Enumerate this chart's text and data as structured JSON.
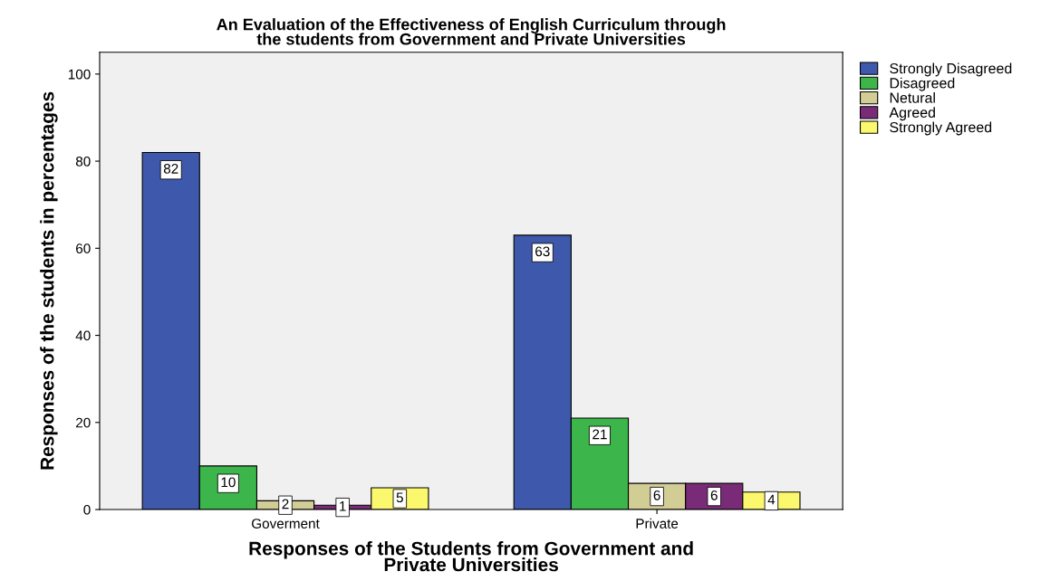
{
  "chart_data": {
    "type": "bar",
    "title": "An Evaluation of the Effectiveness of English Curriculum through\nthe students from Government and Private Universities",
    "xlabel": "Responses of the Students from Government and\nPrivate Universities",
    "ylabel": "Responses of the students in percentages",
    "categories": [
      "Goverment",
      "Private"
    ],
    "series": [
      {
        "name": "Strongly Disagreed",
        "color": "#3e58ac",
        "values": [
          82,
          63
        ]
      },
      {
        "name": "Disagreed",
        "color": "#3cb54a",
        "values": [
          10,
          21
        ]
      },
      {
        "name": "Netural",
        "color": "#d2cd95",
        "values": [
          2,
          6
        ]
      },
      {
        "name": "Agreed",
        "color": "#7a2b78",
        "values": [
          1,
          6
        ]
      },
      {
        "name": "Strongly Agreed",
        "color": "#fbf86e",
        "values": [
          5,
          4
        ]
      }
    ],
    "ylim": [
      0,
      105
    ],
    "yticks": [
      0,
      20,
      40,
      60,
      80,
      100
    ],
    "data_labels": true,
    "legend": "top right",
    "grid": false
  }
}
